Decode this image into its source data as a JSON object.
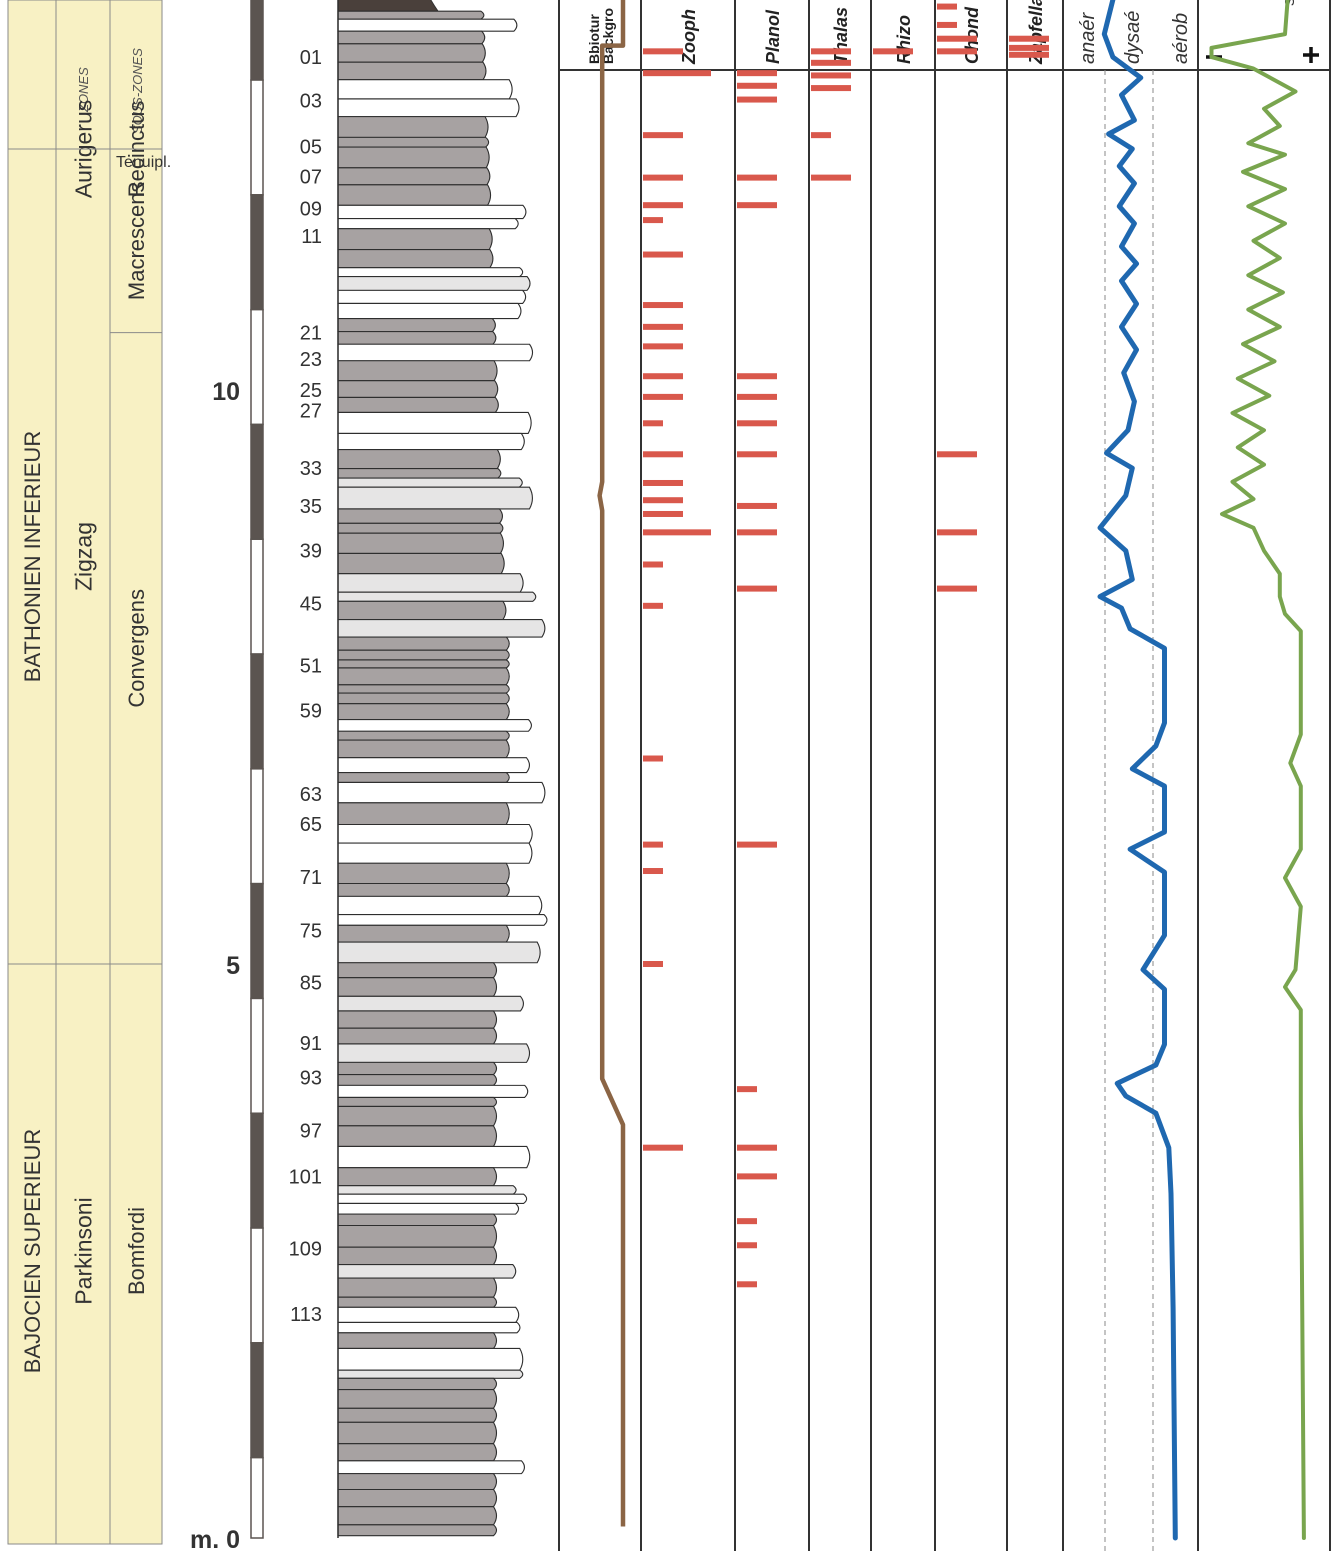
{
  "strat": {
    "header": {
      "zones": "ZONES",
      "sous_zones": "SOUS-ZONES"
    },
    "stages": [
      {
        "label": "BATHONIEN INFERIEUR",
        "top_m": 13.7,
        "bottom_m": 5.0
      },
      {
        "label": "BAJOCIEN SUPERIEUR",
        "top_m": 5.0,
        "bottom_m": 0.0
      }
    ],
    "zones": [
      {
        "label": "Aurigerus",
        "top_m": 13.7,
        "bottom_m": 12.1
      },
      {
        "label": "Zigzag",
        "top_m": 12.1,
        "bottom_m": 5.0
      },
      {
        "label": "Parkinsoni",
        "top_m": 5.0,
        "bottom_m": 0.0
      }
    ],
    "subzones": [
      {
        "label": "Tenuipl.",
        "top_m": 13.7,
        "bottom_m": 13.25
      },
      {
        "label": "Recinctus",
        "top_m": 13.25,
        "bottom_m": 12.1
      },
      {
        "label": "Macrescens",
        "top_m": 12.1,
        "bottom_m": 10.5
      },
      {
        "label": "Convergens",
        "top_m": 10.5,
        "bottom_m": 5.0
      },
      {
        "label": "Bomfordi",
        "top_m": 5.0,
        "bottom_m": 0.0
      }
    ]
  },
  "scale": {
    "ticks": [
      {
        "value": 10,
        "label": "10"
      },
      {
        "value": 5,
        "label": "5"
      },
      {
        "value": 0,
        "label": "m. 0"
      }
    ]
  },
  "beds": [
    {
      "label": "01",
      "m": 12.9
    },
    {
      "label": "03",
      "m": 12.52
    },
    {
      "label": "05",
      "m": 12.12
    },
    {
      "label": "07",
      "m": 11.86
    },
    {
      "label": "09",
      "m": 11.58
    },
    {
      "label": "11",
      "m": 11.34
    },
    {
      "label": "21",
      "m": 10.5
    },
    {
      "label": "23",
      "m": 10.27
    },
    {
      "label": "25",
      "m": 10.0
    },
    {
      "label": "27",
      "m": 9.82
    },
    {
      "label": "33",
      "m": 9.32
    },
    {
      "label": "35",
      "m": 8.99
    },
    {
      "label": "39",
      "m": 8.6
    },
    {
      "label": "45",
      "m": 8.14
    },
    {
      "label": "51",
      "m": 7.6
    },
    {
      "label": "59",
      "m": 7.21
    },
    {
      "label": "63",
      "m": 6.48
    },
    {
      "label": "65",
      "m": 6.22
    },
    {
      "label": "71",
      "m": 5.76
    },
    {
      "label": "75",
      "m": 5.29
    },
    {
      "label": "85",
      "m": 4.84
    },
    {
      "label": "91",
      "m": 4.31
    },
    {
      "label": "93",
      "m": 4.01
    },
    {
      "label": "97",
      "m": 3.55
    },
    {
      "label": "101",
      "m": 3.15
    },
    {
      "label": "109",
      "m": 2.52
    },
    {
      "label": "113",
      "m": 1.95
    }
  ],
  "columns": [
    {
      "title": "Bbioturb.\nBackgr.",
      "shown": "Bbiotur\nBackgro"
    },
    {
      "title": "Zoophycos",
      "shown": "Zooph"
    },
    {
      "title": "Planolites",
      "shown": "Planol"
    },
    {
      "title": "Thalassinoides",
      "shown": "Thalas"
    },
    {
      "title": "Rhizocorallium",
      "shown": "Rhizo"
    },
    {
      "title": "Chondrites",
      "shown": "Chond"
    },
    {
      "title": "Zapfella",
      "shown": "Zapfella"
    },
    {
      "title": "oxygen",
      "shown_labels": [
        "anaér",
        "dysaé",
        "aérob"
      ]
    },
    {
      "title": "signal",
      "shown_labels": [
        "–",
        "+"
      ],
      "top_glyph": "s"
    }
  ],
  "ichno": {
    "Zoophycos": [
      {
        "m": 12.95,
        "w": 1.0
      },
      {
        "m": 12.76,
        "w": 1.7
      },
      {
        "m": 12.22,
        "w": 1.0
      },
      {
        "m": 11.85,
        "w": 1.0
      },
      {
        "m": 11.61,
        "w": 1.0
      },
      {
        "m": 11.48,
        "w": 0.5
      },
      {
        "m": 11.18,
        "w": 1.0
      },
      {
        "m": 10.74,
        "w": 1.0
      },
      {
        "m": 10.55,
        "w": 1.0
      },
      {
        "m": 10.38,
        "w": 1.0
      },
      {
        "m": 10.12,
        "w": 1.0
      },
      {
        "m": 9.94,
        "w": 1.0
      },
      {
        "m": 9.71,
        "w": 0.5
      },
      {
        "m": 9.44,
        "w": 1.0
      },
      {
        "m": 9.19,
        "w": 1.0
      },
      {
        "m": 9.04,
        "w": 1.0
      },
      {
        "m": 8.92,
        "w": 1.0
      },
      {
        "m": 8.76,
        "w": 1.7
      },
      {
        "m": 8.48,
        "w": 0.5
      },
      {
        "m": 8.12,
        "w": 0.5
      },
      {
        "m": 6.79,
        "w": 0.5
      },
      {
        "m": 6.04,
        "w": 0.5
      },
      {
        "m": 5.81,
        "w": 0.5
      },
      {
        "m": 5.0,
        "w": 0.5
      },
      {
        "m": 3.4,
        "w": 1.0
      }
    ],
    "Planolites": [
      {
        "m": 12.76,
        "w": 1.0
      },
      {
        "m": 12.65,
        "w": 1.0
      },
      {
        "m": 12.53,
        "w": 1.0
      },
      {
        "m": 11.85,
        "w": 1.0
      },
      {
        "m": 11.61,
        "w": 1.0
      },
      {
        "m": 10.12,
        "w": 1.0
      },
      {
        "m": 9.94,
        "w": 1.0
      },
      {
        "m": 9.71,
        "w": 1.0
      },
      {
        "m": 9.44,
        "w": 1.0
      },
      {
        "m": 8.99,
        "w": 1.0
      },
      {
        "m": 8.76,
        "w": 1.0
      },
      {
        "m": 8.27,
        "w": 1.0
      },
      {
        "m": 6.04,
        "w": 1.0
      },
      {
        "m": 3.91,
        "w": 0.5
      },
      {
        "m": 3.4,
        "w": 1.0
      },
      {
        "m": 3.15,
        "w": 1.0
      },
      {
        "m": 2.76,
        "w": 0.5
      },
      {
        "m": 2.55,
        "w": 0.5
      },
      {
        "m": 2.21,
        "w": 0.5
      }
    ],
    "Thalassinoides": [
      {
        "m": 12.95,
        "w": 1.0
      },
      {
        "m": 12.85,
        "w": 1.0
      },
      {
        "m": 12.74,
        "w": 1.0
      },
      {
        "m": 12.63,
        "w": 1.0
      },
      {
        "m": 12.22,
        "w": 0.5
      },
      {
        "m": 11.85,
        "w": 1.0
      }
    ],
    "Rhizocorallium": [
      {
        "m": 12.95,
        "w": 1.0
      }
    ],
    "Chondrites": [
      {
        "m": 13.34,
        "w": 0.5
      },
      {
        "m": 13.18,
        "w": 0.5
      },
      {
        "m": 13.06,
        "w": 1.0
      },
      {
        "m": 12.95,
        "w": 1.0
      },
      {
        "m": 9.44,
        "w": 1.0
      },
      {
        "m": 8.76,
        "w": 1.0
      },
      {
        "m": 8.27,
        "w": 1.0
      }
    ],
    "Zapfella": [
      {
        "m": 13.06,
        "w": 1.0
      },
      {
        "m": 12.98,
        "w": 1.0
      },
      {
        "m": 12.92,
        "w": 1.0
      }
    ]
  },
  "curves": {
    "background": {
      "color": "#8B6545",
      "points": [
        [
          13.7,
          0.5
        ],
        [
          13.0,
          0.5
        ],
        [
          13.0,
          0.1
        ],
        [
          9.2,
          0.1
        ],
        [
          9.08,
          0.05
        ],
        [
          8.95,
          0.1
        ],
        [
          4.0,
          0.1
        ],
        [
          3.6,
          0.5
        ],
        [
          0.1,
          0.5
        ]
      ]
    },
    "oxygen": {
      "color": "#1F68B0",
      "points": [
        [
          13.7,
          0.5
        ],
        [
          13.1,
          0.1
        ],
        [
          12.9,
          0.3
        ],
        [
          12.72,
          0.95
        ],
        [
          12.57,
          0.5
        ],
        [
          12.35,
          0.8
        ],
        [
          12.23,
          0.2
        ],
        [
          12.1,
          0.75
        ],
        [
          11.95,
          0.45
        ],
        [
          11.8,
          0.8
        ],
        [
          11.6,
          0.45
        ],
        [
          11.45,
          0.8
        ],
        [
          11.25,
          0.5
        ],
        [
          11.1,
          0.85
        ],
        [
          10.95,
          0.5
        ],
        [
          10.75,
          0.85
        ],
        [
          10.55,
          0.5
        ],
        [
          10.35,
          0.85
        ],
        [
          10.15,
          0.55
        ],
        [
          9.9,
          0.8
        ],
        [
          9.65,
          0.65
        ],
        [
          9.45,
          0.15
        ],
        [
          9.32,
          0.75
        ],
        [
          9.08,
          0.6
        ],
        [
          8.8,
          0.0
        ],
        [
          8.6,
          0.6
        ],
        [
          8.35,
          0.75
        ],
        [
          8.2,
          0.0
        ],
        [
          8.1,
          0.5
        ],
        [
          7.92,
          0.7
        ],
        [
          7.75,
          1.5
        ],
        [
          7.6,
          1.5
        ],
        [
          7.1,
          1.5
        ],
        [
          6.9,
          1.3
        ],
        [
          6.7,
          0.75
        ],
        [
          6.55,
          1.5
        ],
        [
          6.15,
          1.5
        ],
        [
          6.0,
          0.7
        ],
        [
          5.8,
          1.5
        ],
        [
          5.25,
          1.5
        ],
        [
          4.95,
          1.0
        ],
        [
          4.78,
          1.5
        ],
        [
          4.3,
          1.5
        ],
        [
          4.12,
          1.3
        ],
        [
          3.96,
          0.4
        ],
        [
          3.85,
          0.6
        ],
        [
          3.7,
          1.3
        ],
        [
          3.4,
          1.6
        ],
        [
          3.0,
          1.65
        ],
        [
          2.0,
          1.7
        ],
        [
          0.0,
          1.75
        ]
      ]
    },
    "signal": {
      "color": "#79A54E",
      "points": [
        [
          13.7,
          0.85
        ],
        [
          13.1,
          0.8
        ],
        [
          12.98,
          0.1
        ],
        [
          12.9,
          0.1
        ],
        [
          12.8,
          0.5
        ],
        [
          12.6,
          0.9
        ],
        [
          12.45,
          0.6
        ],
        [
          12.3,
          0.75
        ],
        [
          12.15,
          0.45
        ],
        [
          12.05,
          0.8
        ],
        [
          11.9,
          0.4
        ],
        [
          11.75,
          0.8
        ],
        [
          11.6,
          0.45
        ],
        [
          11.45,
          0.8
        ],
        [
          11.3,
          0.5
        ],
        [
          11.15,
          0.75
        ],
        [
          11.0,
          0.45
        ],
        [
          10.85,
          0.78
        ],
        [
          10.7,
          0.45
        ],
        [
          10.55,
          0.75
        ],
        [
          10.4,
          0.4
        ],
        [
          10.25,
          0.7
        ],
        [
          10.1,
          0.35
        ],
        [
          9.95,
          0.65
        ],
        [
          9.8,
          0.3
        ],
        [
          9.65,
          0.6
        ],
        [
          9.5,
          0.35
        ],
        [
          9.35,
          0.6
        ],
        [
          9.2,
          0.3
        ],
        [
          9.05,
          0.5
        ],
        [
          8.92,
          0.2
        ],
        [
          8.8,
          0.5
        ],
        [
          8.6,
          0.6
        ],
        [
          8.4,
          0.75
        ],
        [
          8.2,
          0.75
        ],
        [
          8.05,
          0.8
        ],
        [
          7.9,
          0.95
        ],
        [
          7.6,
          0.95
        ],
        [
          7.0,
          0.95
        ],
        [
          6.75,
          0.85
        ],
        [
          6.55,
          0.95
        ],
        [
          6.0,
          0.95
        ],
        [
          5.75,
          0.8
        ],
        [
          5.5,
          0.95
        ],
        [
          4.95,
          0.9
        ],
        [
          4.8,
          0.8
        ],
        [
          4.6,
          0.95
        ],
        [
          3.7,
          0.95
        ],
        [
          0.0,
          0.98
        ]
      ]
    }
  }
}
